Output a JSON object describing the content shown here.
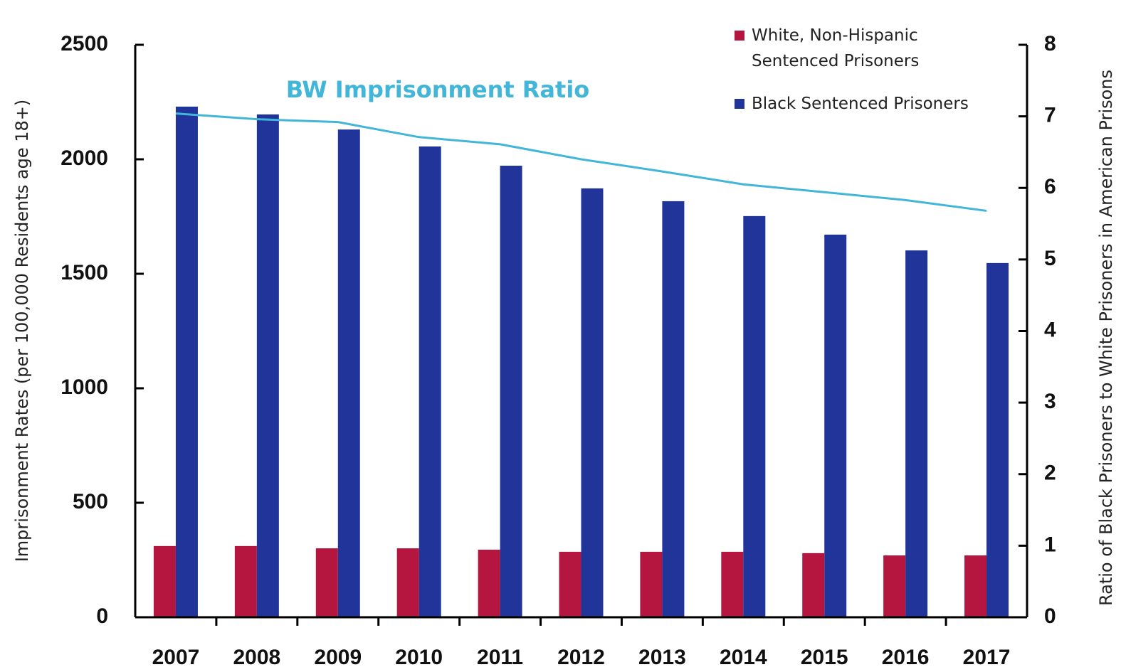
{
  "chart_data": {
    "type": "bar",
    "categories": [
      "2007",
      "2008",
      "2009",
      "2010",
      "2011",
      "2012",
      "2013",
      "2014",
      "2015",
      "2016",
      "2017"
    ],
    "series": [
      {
        "name": "White, Non-Hispanic Sentenced Prisoners",
        "color": "#b5163f",
        "values": [
          311,
          311,
          301,
          301,
          295,
          286,
          286,
          286,
          280,
          270,
          270
        ]
      },
      {
        "name": "Black Sentenced Prisoners",
        "color": "#21349a",
        "values": [
          2230,
          2196,
          2130,
          2056,
          1972,
          1873,
          1817,
          1752,
          1671,
          1602,
          1547
        ]
      },
      {
        "name": "BW Imprisonment Ratio",
        "type": "line",
        "axis": "y2",
        "color": "#41b6d8",
        "values": [
          7.04,
          6.96,
          6.92,
          6.71,
          6.61,
          6.4,
          6.23,
          6.05,
          5.94,
          5.83,
          5.68
        ]
      }
    ],
    "ylabel": "Imprisonment Rates (per 100,000 Residents age 18+)",
    "y2label": "Ratio of Black Prisoners to White Prisoners in American Prisons",
    "ylim": [
      0,
      2500
    ],
    "yticks": [
      0,
      500,
      1000,
      1500,
      2000,
      2500
    ],
    "y2lim": [
      0,
      8
    ],
    "y2ticks": [
      0,
      1,
      2,
      3,
      4,
      5,
      6,
      7,
      8
    ],
    "legend": "upper right"
  }
}
